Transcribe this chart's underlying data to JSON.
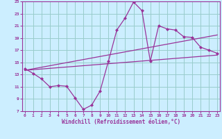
{
  "xlabel": "Windchill (Refroidissement éolien,°C)",
  "bg_color": "#cceeff",
  "grid_color": "#99cccc",
  "line_color": "#993399",
  "x_ticks": [
    0,
    1,
    2,
    3,
    4,
    5,
    6,
    7,
    8,
    9,
    10,
    11,
    12,
    13,
    14,
    15,
    16,
    17,
    18,
    19,
    20,
    21,
    22,
    23
  ],
  "y_ticks": [
    7,
    9,
    11,
    13,
    15,
    17,
    19,
    21,
    23,
    25
  ],
  "xlim": [
    -0.3,
    23.3
  ],
  "ylim": [
    7,
    25
  ],
  "line1_x": [
    0,
    1,
    2,
    3,
    4,
    5,
    6,
    7,
    8,
    9,
    10,
    11,
    12,
    13,
    14,
    15,
    16,
    17,
    18,
    19,
    20,
    21,
    22,
    23
  ],
  "line1_y": [
    14.0,
    13.2,
    12.3,
    11.0,
    11.2,
    11.1,
    9.2,
    7.3,
    8.0,
    10.3,
    15.2,
    20.3,
    22.3,
    24.9,
    23.5,
    15.2,
    21.0,
    20.5,
    20.3,
    19.2,
    19.1,
    17.5,
    17.0,
    16.5
  ],
  "line2_x": [
    0,
    23
  ],
  "line2_y": [
    13.7,
    19.5
  ],
  "line3_x": [
    0,
    23
  ],
  "line3_y": [
    13.7,
    16.2
  ]
}
